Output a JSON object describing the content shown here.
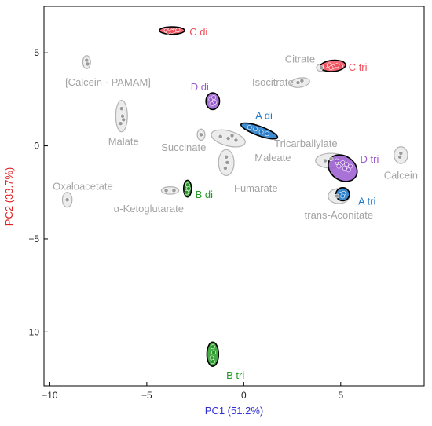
{
  "chart_data": {
    "type": "scatter",
    "xlabel": "PC1 (51.2%)",
    "ylabel": "PC2 (33.7%)",
    "xlim": [
      -10.3,
      9.3
    ],
    "ylim": [
      -12.9,
      7.5
    ],
    "xticks": [
      -10,
      -5,
      0,
      5
    ],
    "yticks": [
      5,
      0,
      -5,
      -10
    ],
    "xtick_labels": [
      "−10",
      "−5",
      "0",
      "5"
    ],
    "ytick_labels": [
      "5",
      "0",
      "−5",
      "−10"
    ],
    "grid": false,
    "colors": {
      "axis_x_label": "#2f2fd4",
      "axis_y_label": "#e02020",
      "ref": "#b3b3b3",
      "C": "#f04e5a",
      "D": "#9a59d0",
      "A": "#1f78c8",
      "B": "#249a24"
    },
    "groups": [
      {
        "label": "C di",
        "group": "C",
        "center": [
          -3.7,
          6.2
        ],
        "rx": 0.65,
        "ry": 0.2,
        "angle": 0,
        "outline": "#000000",
        "label_pos": [
          -2.8,
          6.15
        ],
        "anchor": "start",
        "points": [
          [
            -4.0,
            6.2
          ],
          [
            -3.8,
            6.25
          ],
          [
            -3.6,
            6.18
          ],
          [
            -3.4,
            6.22
          ],
          [
            -3.7,
            6.15
          ],
          [
            -3.9,
            6.12
          ]
        ]
      },
      {
        "label": "C tri",
        "group": "C",
        "center": [
          4.6,
          4.3
        ],
        "rx": 0.65,
        "ry": 0.3,
        "angle": 5,
        "outline": "#000000",
        "label_pos": [
          5.4,
          4.25
        ],
        "anchor": "start",
        "points": [
          [
            4.2,
            4.3
          ],
          [
            4.4,
            4.35
          ],
          [
            4.6,
            4.25
          ],
          [
            4.8,
            4.32
          ],
          [
            5.0,
            4.28
          ],
          [
            4.5,
            4.2
          ]
        ]
      },
      {
        "label": "D di",
        "group": "D",
        "center": [
          -1.6,
          2.4
        ],
        "rx": 0.35,
        "ry": 0.45,
        "angle": 0,
        "outline": "#000000",
        "label_pos": [
          -1.8,
          3.2
        ],
        "anchor": "end",
        "points": [
          [
            -1.7,
            2.5
          ],
          [
            -1.5,
            2.35
          ],
          [
            -1.65,
            2.25
          ],
          [
            -1.55,
            2.6
          ]
        ]
      },
      {
        "label": "D tri",
        "group": "D",
        "center": [
          5.1,
          -1.2
        ],
        "rx": 0.8,
        "ry": 0.65,
        "angle": -35,
        "outline": "#000000",
        "label_pos": [
          6.0,
          -0.7
        ],
        "anchor": "start",
        "points": [
          [
            4.8,
            -0.8
          ],
          [
            5.0,
            -1.0
          ],
          [
            5.2,
            -1.2
          ],
          [
            5.4,
            -1.3
          ],
          [
            4.9,
            -1.1
          ],
          [
            5.1,
            -0.9
          ],
          [
            5.3,
            -1.0
          ],
          [
            5.5,
            -1.1
          ]
        ]
      },
      {
        "label": "A di",
        "group": "A",
        "center": [
          0.8,
          0.8
        ],
        "rx": 1.0,
        "ry": 0.25,
        "angle": -20,
        "outline": "#000000",
        "label_pos": [
          0.6,
          1.65
        ],
        "anchor": "start",
        "points": [
          [
            0.3,
            1.0
          ],
          [
            0.6,
            0.9
          ],
          [
            0.9,
            0.75
          ],
          [
            1.2,
            0.65
          ]
        ]
      },
      {
        "label": "A tri",
        "group": "A",
        "center": [
          5.1,
          -2.6
        ],
        "rx": 0.35,
        "ry": 0.35,
        "angle": 0,
        "outline": "#000000",
        "label_pos": [
          5.9,
          -2.95
        ],
        "anchor": "start",
        "points": [
          [
            5.0,
            -2.6
          ],
          [
            5.15,
            -2.55
          ],
          [
            5.1,
            -2.7
          ]
        ]
      },
      {
        "label": "B di",
        "group": "B",
        "center": [
          -2.9,
          -2.3
        ],
        "rx": 0.2,
        "ry": 0.45,
        "angle": 0,
        "outline": "#000000",
        "label_pos": [
          -2.5,
          -2.6
        ],
        "anchor": "start",
        "points": [
          [
            -2.9,
            -2.1
          ],
          [
            -2.85,
            -2.3
          ],
          [
            -2.95,
            -2.5
          ]
        ]
      },
      {
        "label": "B tri",
        "group": "B",
        "center": [
          -1.6,
          -11.2
        ],
        "rx": 0.3,
        "ry": 0.65,
        "angle": 0,
        "outline": "#000000",
        "label_pos": [
          -0.9,
          -12.3
        ],
        "anchor": "start",
        "points": [
          [
            -1.6,
            -10.8
          ],
          [
            -1.55,
            -11.1
          ],
          [
            -1.65,
            -11.4
          ],
          [
            -1.6,
            -11.6
          ]
        ]
      }
    ],
    "references": [
      {
        "label": "Citrate",
        "center": [
          4.0,
          4.2
        ],
        "rx": 0.25,
        "ry": 0.2,
        "angle": 0,
        "label_pos": [
          2.9,
          4.7
        ],
        "anchor": "middle",
        "points": [
          [
            4.0,
            4.2
          ]
        ]
      },
      {
        "label": "Isocitrate",
        "center": [
          2.9,
          3.4
        ],
        "rx": 0.5,
        "ry": 0.25,
        "angle": 10,
        "label_pos": [
          1.5,
          3.45
        ],
        "anchor": "middle",
        "points": [
          [
            2.8,
            3.4
          ],
          [
            3.0,
            3.5
          ]
        ]
      },
      {
        "label": "[Calcein · PAMAM]",
        "center": [
          -8.1,
          4.5
        ],
        "rx": 0.2,
        "ry": 0.35,
        "angle": 0,
        "label_pos": [
          -7.0,
          3.45
        ],
        "anchor": "middle",
        "points": [
          [
            -8.1,
            4.6
          ],
          [
            -8.05,
            4.4
          ]
        ]
      },
      {
        "label": "Malate",
        "center": [
          -6.3,
          1.6
        ],
        "rx": 0.3,
        "ry": 0.85,
        "angle": 0,
        "label_pos": [
          -6.2,
          0.25
        ],
        "anchor": "middle",
        "points": [
          [
            -6.3,
            2.0
          ],
          [
            -6.25,
            1.6
          ],
          [
            -6.35,
            1.2
          ],
          [
            -6.2,
            1.4
          ]
        ]
      },
      {
        "label": "Succinate",
        "center": [
          -2.2,
          0.6
        ],
        "rx": 0.2,
        "ry": 0.3,
        "angle": 0,
        "label_pos": [
          -3.1,
          -0.05
        ],
        "anchor": "middle",
        "points": [
          [
            -2.2,
            0.6
          ]
        ]
      },
      {
        "label": "Maleate",
        "center": [
          -0.8,
          0.4
        ],
        "rx": 0.9,
        "ry": 0.4,
        "angle": -15,
        "label_pos": [
          1.5,
          -0.6
        ],
        "anchor": "middle",
        "points": [
          [
            -1.2,
            0.5
          ],
          [
            -0.8,
            0.4
          ],
          [
            -0.4,
            0.3
          ],
          [
            -0.6,
            0.55
          ]
        ]
      },
      {
        "label": "Fumarate",
        "center": [
          -0.9,
          -0.9
        ],
        "rx": 0.4,
        "ry": 0.7,
        "angle": 0,
        "label_pos": [
          -0.5,
          -2.25
        ],
        "anchor": "start",
        "points": [
          [
            -0.9,
            -0.6
          ],
          [
            -0.85,
            -0.9
          ],
          [
            -0.95,
            -1.2
          ]
        ]
      },
      {
        "label": "Tricarballylate",
        "center": [
          4.5,
          -0.8
        ],
        "rx": 0.8,
        "ry": 0.4,
        "angle": 0,
        "label_pos": [
          3.2,
          0.15
        ],
        "anchor": "middle",
        "points": [
          [
            4.2,
            -0.8
          ],
          [
            4.5,
            -0.7
          ],
          [
            4.8,
            -0.9
          ]
        ]
      },
      {
        "label": "Calcein",
        "center": [
          8.1,
          -0.5
        ],
        "rx": 0.35,
        "ry": 0.45,
        "angle": 0,
        "label_pos": [
          8.1,
          -1.55
        ],
        "anchor": "middle",
        "points": [
          [
            8.1,
            -0.4
          ],
          [
            8.05,
            -0.6
          ]
        ]
      },
      {
        "label": "trans-Aconitate",
        "center": [
          4.9,
          -2.7
        ],
        "rx": 0.55,
        "ry": 0.4,
        "angle": 0,
        "label_pos": [
          4.9,
          -3.7
        ],
        "anchor": "middle",
        "points": [
          [
            4.8,
            -2.7
          ]
        ]
      },
      {
        "label": "Oxaloacetate",
        "center": [
          -9.1,
          -2.9
        ],
        "rx": 0.25,
        "ry": 0.4,
        "angle": 0,
        "label_pos": [
          -8.3,
          -2.15
        ],
        "anchor": "middle",
        "points": [
          [
            -9.1,
            -2.9
          ]
        ]
      },
      {
        "label": "α-Ketoglutarate",
        "center": [
          -3.8,
          -2.4
        ],
        "rx": 0.45,
        "ry": 0.2,
        "angle": 0,
        "label_pos": [
          -4.9,
          -3.35
        ],
        "anchor": "middle",
        "points": [
          [
            -4.0,
            -2.4
          ],
          [
            -3.6,
            -2.4
          ]
        ]
      }
    ]
  }
}
